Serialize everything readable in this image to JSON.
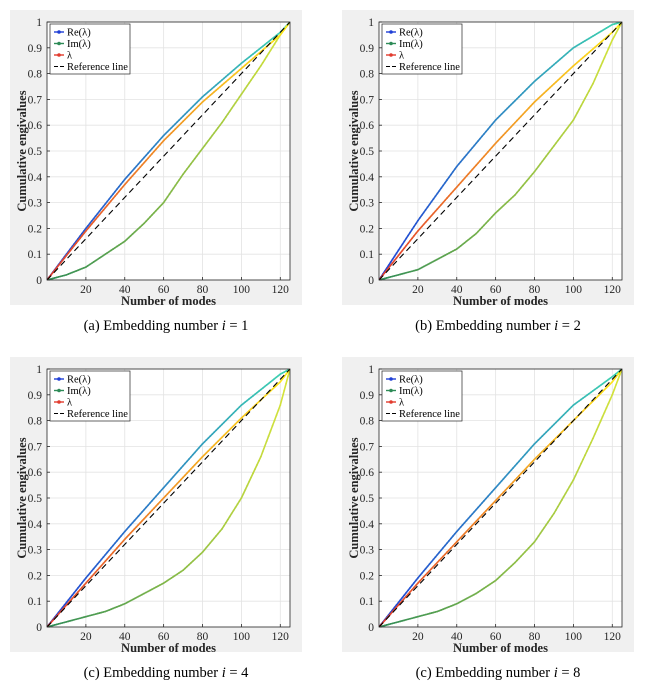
{
  "figure": {
    "captions": [
      {
        "label": "(a) Embedding number ",
        "var": "i",
        "eq": " = 1"
      },
      {
        "label": "(b) Embedding number ",
        "var": "i",
        "eq": " = 2"
      },
      {
        "label": "(c) Embedding number ",
        "var": "i",
        "eq": " = 4"
      },
      {
        "label": "(c) Embedding number ",
        "var": "i",
        "eq": " = 8"
      }
    ]
  },
  "chart_data": [
    {
      "type": "line",
      "xlabel": "Number of modes",
      "ylabel": "Cumulative engivalues",
      "xlim": [
        0,
        125
      ],
      "ylim": [
        0,
        1
      ],
      "xticks": [
        20,
        40,
        60,
        80,
        100,
        120
      ],
      "yticks": [
        0,
        0.1,
        0.2,
        0.3,
        0.4,
        0.5,
        0.6,
        0.7,
        0.8,
        0.9,
        1
      ],
      "grid": true,
      "legend": "top-left",
      "series": [
        {
          "name": "Re(λ)",
          "color": "#1f3fd6",
          "x": [
            0,
            20,
            40,
            60,
            80,
            100,
            120,
            125
          ],
          "y": [
            0,
            0.2,
            0.39,
            0.56,
            0.71,
            0.84,
            0.96,
            1.0
          ]
        },
        {
          "name": "Im(λ)",
          "color": "#2e8b57",
          "x": [
            0,
            10,
            20,
            30,
            40,
            50,
            60,
            70,
            80,
            90,
            100,
            110,
            120,
            125
          ],
          "y": [
            0,
            0.02,
            0.05,
            0.1,
            0.15,
            0.22,
            0.3,
            0.41,
            0.51,
            0.61,
            0.72,
            0.83,
            0.95,
            1.0
          ]
        },
        {
          "name": "λ",
          "color": "#e23b2e",
          "x": [
            0,
            20,
            40,
            60,
            80,
            100,
            120,
            125
          ],
          "y": [
            0,
            0.19,
            0.37,
            0.54,
            0.69,
            0.82,
            0.95,
            1.0
          ]
        },
        {
          "name": "Reference line",
          "color": "#000000",
          "dashed": true,
          "x": [
            0,
            125
          ],
          "y": [
            0,
            1
          ]
        }
      ]
    },
    {
      "type": "line",
      "xlabel": "Number of modes",
      "ylabel": "Cumulative engivalues",
      "xlim": [
        0,
        125
      ],
      "ylim": [
        0,
        1
      ],
      "xticks": [
        20,
        40,
        60,
        80,
        100,
        120
      ],
      "yticks": [
        0,
        0.1,
        0.2,
        0.3,
        0.4,
        0.5,
        0.6,
        0.7,
        0.8,
        0.9,
        1
      ],
      "grid": true,
      "legend": "top-left",
      "series": [
        {
          "name": "Re(λ)",
          "color": "#1f3fd6",
          "x": [
            0,
            20,
            40,
            60,
            80,
            100,
            120,
            125
          ],
          "y": [
            0,
            0.23,
            0.44,
            0.62,
            0.77,
            0.9,
            0.99,
            1.0
          ]
        },
        {
          "name": "Im(λ)",
          "color": "#2e8b57",
          "x": [
            0,
            10,
            20,
            30,
            40,
            50,
            60,
            70,
            80,
            90,
            100,
            110,
            120,
            125
          ],
          "y": [
            0,
            0.02,
            0.04,
            0.08,
            0.12,
            0.18,
            0.26,
            0.33,
            0.42,
            0.52,
            0.62,
            0.76,
            0.93,
            1.0
          ]
        },
        {
          "name": "λ",
          "color": "#e23b2e",
          "x": [
            0,
            20,
            40,
            60,
            80,
            100,
            120,
            125
          ],
          "y": [
            0,
            0.19,
            0.36,
            0.53,
            0.69,
            0.83,
            0.96,
            1.0
          ]
        },
        {
          "name": "Reference line",
          "color": "#000000",
          "dashed": true,
          "x": [
            0,
            125
          ],
          "y": [
            0,
            1
          ]
        }
      ]
    },
    {
      "type": "line",
      "xlabel": "Number of modes",
      "ylabel": "Cumulative engivalues",
      "xlim": [
        0,
        125
      ],
      "ylim": [
        0,
        1
      ],
      "xticks": [
        20,
        40,
        60,
        80,
        100,
        120
      ],
      "yticks": [
        0,
        0.1,
        0.2,
        0.3,
        0.4,
        0.5,
        0.6,
        0.7,
        0.8,
        0.9,
        1
      ],
      "grid": true,
      "legend": "top-left",
      "series": [
        {
          "name": "Re(λ)",
          "color": "#1f3fd6",
          "x": [
            0,
            20,
            40,
            60,
            80,
            100,
            120,
            125
          ],
          "y": [
            0,
            0.19,
            0.37,
            0.54,
            0.71,
            0.86,
            0.98,
            1.0
          ]
        },
        {
          "name": "Im(λ)",
          "color": "#2e8b57",
          "x": [
            0,
            10,
            20,
            30,
            40,
            50,
            60,
            70,
            80,
            90,
            100,
            110,
            120,
            125
          ],
          "y": [
            0,
            0.02,
            0.04,
            0.06,
            0.09,
            0.13,
            0.17,
            0.22,
            0.29,
            0.38,
            0.5,
            0.66,
            0.86,
            1.0
          ]
        },
        {
          "name": "λ",
          "color": "#e23b2e",
          "x": [
            0,
            20,
            40,
            60,
            80,
            100,
            120,
            125
          ],
          "y": [
            0,
            0.17,
            0.34,
            0.5,
            0.66,
            0.81,
            0.95,
            1.0
          ]
        },
        {
          "name": "Reference line",
          "color": "#000000",
          "dashed": true,
          "x": [
            0,
            125
          ],
          "y": [
            0,
            1
          ]
        }
      ]
    },
    {
      "type": "line",
      "xlabel": "Number of modes",
      "ylabel": "Cumulative engivalues",
      "xlim": [
        0,
        125
      ],
      "ylim": [
        0,
        1
      ],
      "xticks": [
        20,
        40,
        60,
        80,
        100,
        120
      ],
      "yticks": [
        0,
        0.1,
        0.2,
        0.3,
        0.4,
        0.5,
        0.6,
        0.7,
        0.8,
        0.9,
        1
      ],
      "grid": true,
      "legend": "top-left",
      "series": [
        {
          "name": "Re(λ)",
          "color": "#1f3fd6",
          "x": [
            0,
            20,
            40,
            60,
            80,
            100,
            120,
            125
          ],
          "y": [
            0,
            0.19,
            0.37,
            0.54,
            0.71,
            0.86,
            0.97,
            1.0
          ]
        },
        {
          "name": "Im(λ)",
          "color": "#2e8b57",
          "x": [
            0,
            10,
            20,
            30,
            40,
            50,
            60,
            70,
            80,
            90,
            100,
            110,
            120,
            125
          ],
          "y": [
            0,
            0.02,
            0.04,
            0.06,
            0.09,
            0.13,
            0.18,
            0.25,
            0.33,
            0.44,
            0.57,
            0.73,
            0.9,
            1.0
          ]
        },
        {
          "name": "λ",
          "color": "#e23b2e",
          "x": [
            0,
            20,
            40,
            60,
            80,
            100,
            120,
            125
          ],
          "y": [
            0,
            0.17,
            0.33,
            0.49,
            0.65,
            0.8,
            0.95,
            1.0
          ]
        },
        {
          "name": "Reference line",
          "color": "#000000",
          "dashed": true,
          "x": [
            0,
            125
          ],
          "y": [
            0,
            1
          ]
        }
      ]
    }
  ]
}
